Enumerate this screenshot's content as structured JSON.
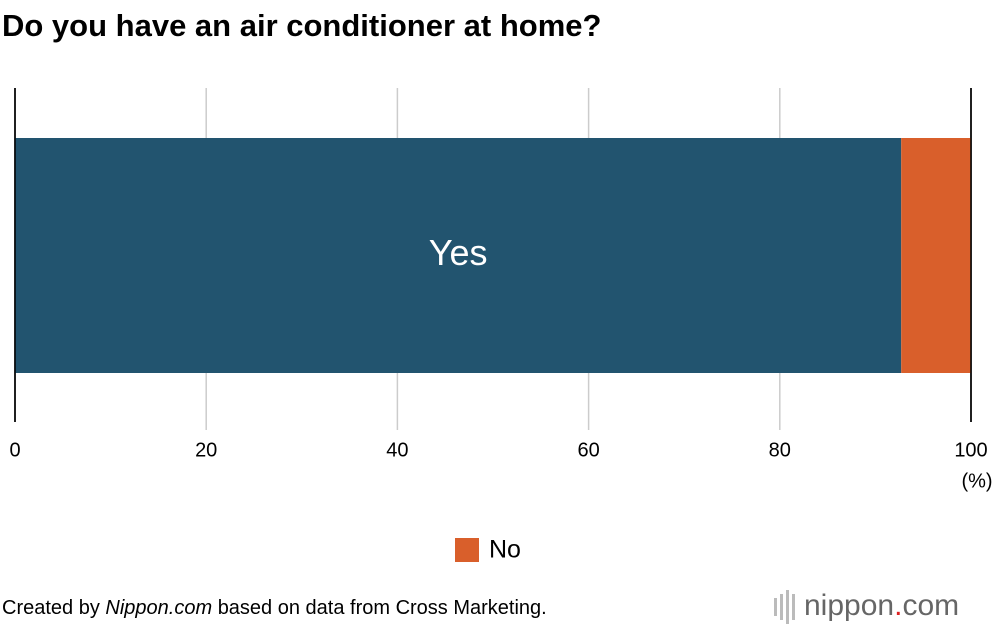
{
  "chart_data": {
    "type": "stacked_bar_horizontal",
    "title": "Do you have an air conditioner at home?",
    "series": [
      {
        "name": "Yes",
        "color": "#22546f",
        "values": [
          92.7
        ]
      },
      {
        "name": "No",
        "color": "#d95f2b",
        "values": [
          7.3
        ]
      }
    ],
    "xlim": [
      0,
      100
    ],
    "xticks": [
      0,
      20,
      40,
      60,
      80,
      100
    ],
    "x_unit": "(%)",
    "grid": true,
    "source": {
      "prefix": "Created by",
      "italic": "Nippon.com",
      "suffix": "based on data from Cross Marketing."
    },
    "logo": [
      "nippon",
      ".",
      "com"
    ]
  }
}
